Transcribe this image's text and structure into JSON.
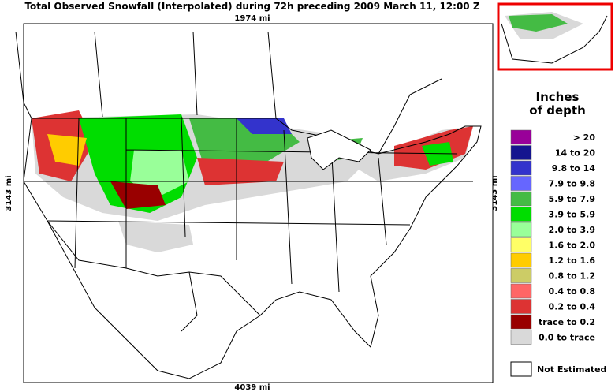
{
  "header": {
    "title": "Total Observed Snowfall (Interpolated) during 72h preceding 2009 March 11, 12:00 Z"
  },
  "scale": {
    "top": "1974 mi",
    "bottom": "4039 mi",
    "left": "3143 mi",
    "right": "3143 mi"
  },
  "legend": {
    "title_line1": "Inches",
    "title_line2": "of depth",
    "entries": [
      {
        "label": ">   20",
        "color": "#990099"
      },
      {
        "label": "14 to  20",
        "color": "#15158f"
      },
      {
        "label": "9.8 to  14",
        "color": "#3333cc"
      },
      {
        "label": "7.9 to  9.8",
        "color": "#6666ff"
      },
      {
        "label": "5.9 to  7.9",
        "color": "#44bb44"
      },
      {
        "label": "3.9 to  5.9",
        "color": "#00dd00"
      },
      {
        "label": "2.0 to  3.9",
        "color": "#99ff99"
      },
      {
        "label": "1.6 to  2.0",
        "color": "#ffff66"
      },
      {
        "label": "1.2 to  1.6",
        "color": "#ffcc00"
      },
      {
        "label": "0.8 to  1.2",
        "color": "#cccc66"
      },
      {
        "label": "0.4 to  0.8",
        "color": "#ff6666"
      },
      {
        "label": "0.2 to  0.4",
        "color": "#dd3333"
      },
      {
        "label": "trace to  0.2",
        "color": "#990000"
      },
      {
        "label": "0.0 to trace",
        "color": "#d9d9d9"
      }
    ],
    "not_estimated": "Not Estimated"
  }
}
